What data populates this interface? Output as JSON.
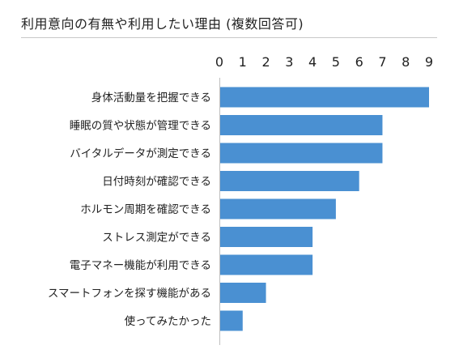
{
  "colors": {
    "bar": "#4a90d2",
    "axis": "#bfbfbf",
    "text": "#222222"
  },
  "chart_data": {
    "type": "bar",
    "orientation": "horizontal",
    "title": "利用意向の有無や利用したい理由 (複数回答可)",
    "categories": [
      "身体活動量を把握できる",
      "睡眠の質や状態が管理できる",
      "バイタルデータが測定できる",
      "日付時刻が確認できる",
      "ホルモン周期を確認できる",
      "ストレス測定ができる",
      "電子マネー機能が利用できる",
      "スマートフォンを探す機能がある",
      "使ってみたかった"
    ],
    "values": [
      9,
      7,
      7,
      6,
      5,
      4,
      4,
      2,
      1
    ],
    "xlim": [
      0,
      9
    ],
    "xticks": [
      "0",
      "1",
      "2",
      "3",
      "4",
      "5",
      "6",
      "7",
      "8",
      "9"
    ],
    "xaxis_position": "top",
    "grid": false,
    "legend": "none"
  }
}
